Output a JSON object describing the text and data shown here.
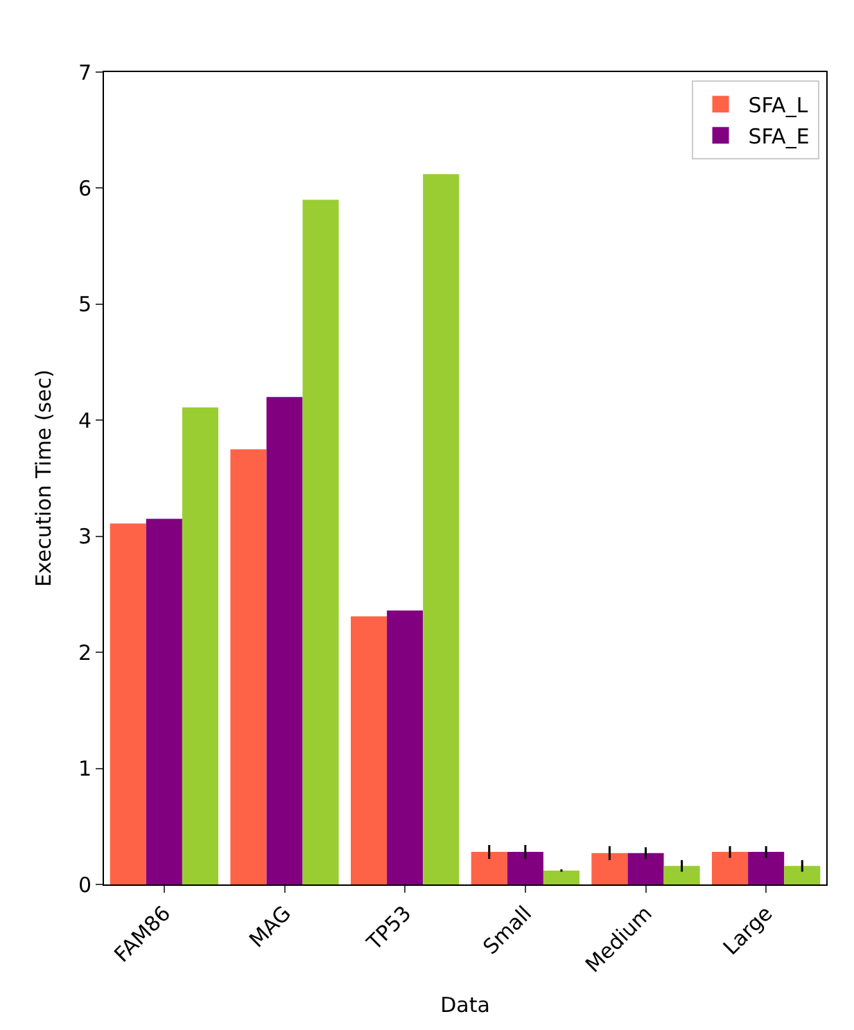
{
  "chart_data": {
    "type": "bar",
    "xlabel": "Data",
    "ylabel": "Execution Time (sec)",
    "categories": [
      "FAM86",
      "MAG",
      "TP53",
      "Small",
      "Medium",
      "Large"
    ],
    "series": [
      {
        "name": "SFA_L",
        "color": "#ff6347",
        "values": [
          3.11,
          3.75,
          2.31,
          0.28,
          0.27,
          0.28
        ],
        "errors": [
          null,
          null,
          null,
          0.06,
          0.06,
          0.05
        ]
      },
      {
        "name": "SFA_E",
        "color": "#800080",
        "values": [
          3.15,
          4.2,
          2.36,
          0.28,
          0.27,
          0.28
        ],
        "errors": [
          null,
          null,
          null,
          0.06,
          0.05,
          0.05
        ]
      },
      {
        "color": "#9acd32",
        "values": [
          4.11,
          5.9,
          6.12,
          0.12,
          0.16,
          0.16
        ],
        "errors": [
          null,
          null,
          null,
          0.01,
          0.05,
          0.05
        ]
      }
    ],
    "ylim": [
      0,
      7
    ],
    "yticks": [
      0,
      1,
      2,
      3,
      4,
      5,
      6,
      7
    ],
    "legend": "top right"
  }
}
